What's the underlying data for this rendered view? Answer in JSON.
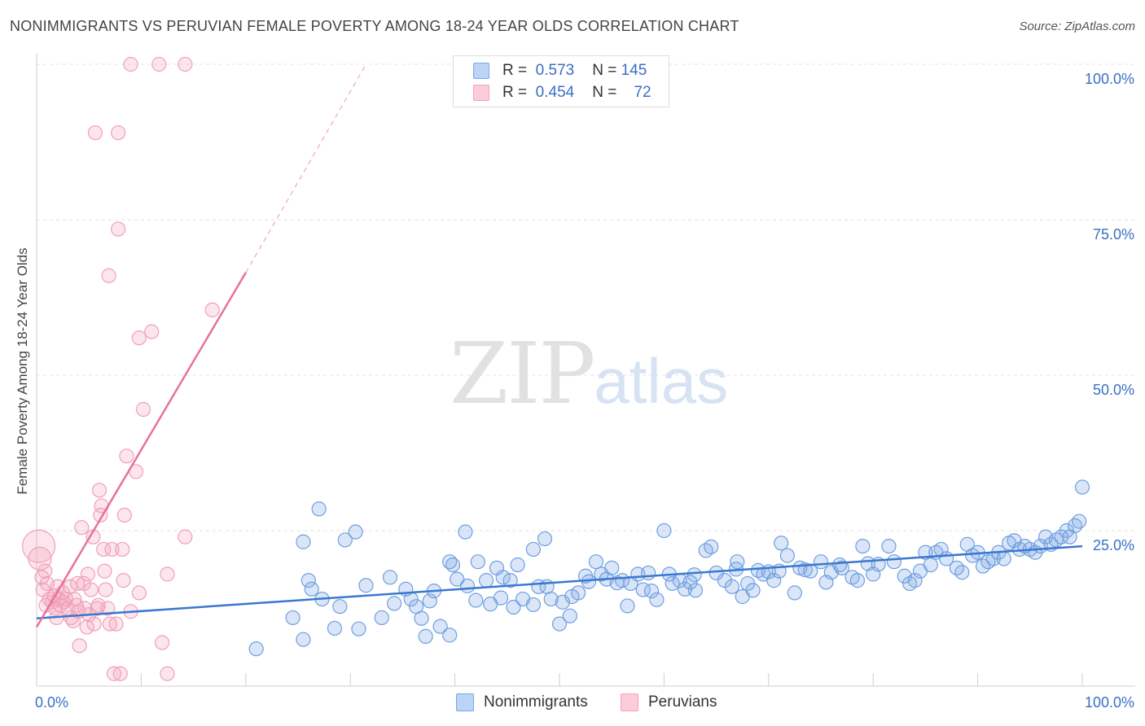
{
  "title": "NONIMMIGRANTS VS PERUVIAN FEMALE POVERTY AMONG 18-24 YEAR OLDS CORRELATION CHART",
  "source": "Source: ZipAtlas.com",
  "watermark": {
    "zip": "ZIP",
    "atlas": "atlas"
  },
  "legend": {
    "r_label": "R =",
    "n_label": "N =",
    "rows": [
      {
        "r": "0.573",
        "n": "145"
      },
      {
        "r": "0.454",
        "n": "72"
      }
    ]
  },
  "chart_data": {
    "type": "scatter",
    "title": "NONIMMIGRANTS VS PERUVIAN FEMALE POVERTY AMONG 18-24 YEAR OLDS CORRELATION CHART",
    "xlabel": "",
    "ylabel": "Female Poverty Among 18-24 Year Olds",
    "xlim": [
      0,
      100
    ],
    "ylim": [
      0,
      100
    ],
    "x_tick_labels": [
      "0.0%",
      "100.0%"
    ],
    "y_ticks": [
      25,
      50,
      75,
      100
    ],
    "y_tick_labels": [
      "25.0%",
      "50.0%",
      "75.0%",
      "100.0%"
    ],
    "grid": true,
    "legend_position": "top-center",
    "colors": {
      "nonimmigrants": "#7aa7e6",
      "peruvians": "#f4a2b9",
      "blue_line": "#3a78cf",
      "pink_line": "#e8729a",
      "tick_label": "#3a6fc4"
    },
    "series": [
      {
        "name": "Nonimmigrants",
        "color": "#7aa7e6",
        "trend": {
          "x": [
            0,
            100
          ],
          "y": [
            10.9,
            22.5
          ]
        },
        "points": [
          [
            21.0,
            6.0
          ],
          [
            25.5,
            7.5
          ],
          [
            25.5,
            23.2
          ],
          [
            26.0,
            17.0
          ],
          [
            26.3,
            15.6
          ],
          [
            27.3,
            14.0
          ],
          [
            27.0,
            28.5
          ],
          [
            28.5,
            9.3
          ],
          [
            29.0,
            12.8
          ],
          [
            29.5,
            23.5
          ],
          [
            30.5,
            24.8
          ],
          [
            30.8,
            9.2
          ],
          [
            31.5,
            16.2
          ],
          [
            33.0,
            11.0
          ],
          [
            34.2,
            13.3
          ],
          [
            35.3,
            15.6
          ],
          [
            35.8,
            14.0
          ],
          [
            36.3,
            12.8
          ],
          [
            36.8,
            10.9
          ],
          [
            37.2,
            8.0
          ],
          [
            37.6,
            13.7
          ],
          [
            38.0,
            15.3
          ],
          [
            38.6,
            9.6
          ],
          [
            39.5,
            8.2
          ],
          [
            39.5,
            20.0
          ],
          [
            39.8,
            19.5
          ],
          [
            40.2,
            17.2
          ],
          [
            41.0,
            24.8
          ],
          [
            41.2,
            16.1
          ],
          [
            42.0,
            13.8
          ],
          [
            42.2,
            20.0
          ],
          [
            43.0,
            17.0
          ],
          [
            44.0,
            19.0
          ],
          [
            44.4,
            14.2
          ],
          [
            44.6,
            17.5
          ],
          [
            45.3,
            17.0
          ],
          [
            45.6,
            12.7
          ],
          [
            46.0,
            19.5
          ],
          [
            46.5,
            14.0
          ],
          [
            47.5,
            13.1
          ],
          [
            47.5,
            22.0
          ],
          [
            48.0,
            16.0
          ],
          [
            48.6,
            23.7
          ],
          [
            48.8,
            16.0
          ],
          [
            49.2,
            14.0
          ],
          [
            50.0,
            10.0
          ],
          [
            50.3,
            13.5
          ],
          [
            51.0,
            11.3
          ],
          [
            51.2,
            14.4
          ],
          [
            51.8,
            15.0
          ],
          [
            52.5,
            17.7
          ],
          [
            53.5,
            20.0
          ],
          [
            54.0,
            18.0
          ],
          [
            54.5,
            17.2
          ],
          [
            55.0,
            19.0
          ],
          [
            55.5,
            16.6
          ],
          [
            56.0,
            17.0
          ],
          [
            56.5,
            12.9
          ],
          [
            56.8,
            16.5
          ],
          [
            57.5,
            18.0
          ],
          [
            58.0,
            15.5
          ],
          [
            58.5,
            18.2
          ],
          [
            58.8,
            15.3
          ],
          [
            60.0,
            25.0
          ],
          [
            60.5,
            18.0
          ],
          [
            60.8,
            16.5
          ],
          [
            61.5,
            17.0
          ],
          [
            62.0,
            15.6
          ],
          [
            62.5,
            16.7
          ],
          [
            63.0,
            15.4
          ],
          [
            64.0,
            21.8
          ],
          [
            64.5,
            22.4
          ],
          [
            65.0,
            18.2
          ],
          [
            65.8,
            17.0
          ],
          [
            66.5,
            16.0
          ],
          [
            67.0,
            20.0
          ],
          [
            67.5,
            14.4
          ],
          [
            68.0,
            16.5
          ],
          [
            68.5,
            15.4
          ],
          [
            69.0,
            18.6
          ],
          [
            69.5,
            18.0
          ],
          [
            70.0,
            18.4
          ],
          [
            70.5,
            17.0
          ],
          [
            71.0,
            18.5
          ],
          [
            71.2,
            23.0
          ],
          [
            71.8,
            21.0
          ],
          [
            72.5,
            15.0
          ],
          [
            73.0,
            19.0
          ],
          [
            73.5,
            18.7
          ],
          [
            74.0,
            18.5
          ],
          [
            75.0,
            20.0
          ],
          [
            75.5,
            16.7
          ],
          [
            76.0,
            18.3
          ],
          [
            76.8,
            19.5
          ],
          [
            77.0,
            19.0
          ],
          [
            78.0,
            17.5
          ],
          [
            78.5,
            17.0
          ],
          [
            79.0,
            22.5
          ],
          [
            79.5,
            19.7
          ],
          [
            80.0,
            18.0
          ],
          [
            80.5,
            19.6
          ],
          [
            81.5,
            22.5
          ],
          [
            82.0,
            20.0
          ],
          [
            83.0,
            17.7
          ],
          [
            83.5,
            16.5
          ],
          [
            84.0,
            17.0
          ],
          [
            84.5,
            18.5
          ],
          [
            85.0,
            21.5
          ],
          [
            85.5,
            19.5
          ],
          [
            86.0,
            21.5
          ],
          [
            86.5,
            22.0
          ],
          [
            87.0,
            20.5
          ],
          [
            88.0,
            19.0
          ],
          [
            88.5,
            18.3
          ],
          [
            89.0,
            22.8
          ],
          [
            89.5,
            21.0
          ],
          [
            90.0,
            21.5
          ],
          [
            90.5,
            19.3
          ],
          [
            91.0,
            20.0
          ],
          [
            91.5,
            20.5
          ],
          [
            92.0,
            21.5
          ],
          [
            92.5,
            20.5
          ],
          [
            93.0,
            23.0
          ],
          [
            93.5,
            23.4
          ],
          [
            94.0,
            22.0
          ],
          [
            94.5,
            22.5
          ],
          [
            95.0,
            22.0
          ],
          [
            95.5,
            21.5
          ],
          [
            96.0,
            22.5
          ],
          [
            96.5,
            24.0
          ],
          [
            97.0,
            22.8
          ],
          [
            97.5,
            23.5
          ],
          [
            98.0,
            24.0
          ],
          [
            98.5,
            25.0
          ],
          [
            98.8,
            24.0
          ],
          [
            99.3,
            25.8
          ],
          [
            99.7,
            26.5
          ],
          [
            100.0,
            32.0
          ],
          [
            24.5,
            11.0
          ],
          [
            33.8,
            17.5
          ],
          [
            43.4,
            13.2
          ],
          [
            52.8,
            16.8
          ],
          [
            59.3,
            13.9
          ],
          [
            62.9,
            17.9
          ],
          [
            66.9,
            18.8
          ]
        ]
      },
      {
        "name": "Peruvians",
        "color": "#f4a2b9",
        "trend": {
          "x": [
            0,
            20
          ],
          "y": [
            9.5,
            66.5
          ]
        },
        "trend_dashed": {
          "x": [
            20,
            31.5
          ],
          "y": [
            66.5,
            100
          ]
        },
        "points": [
          [
            0.2,
            22.5
          ],
          [
            0.3,
            20.5
          ],
          [
            0.5,
            17.5
          ],
          [
            0.6,
            15.5
          ],
          [
            0.8,
            18.5
          ],
          [
            1.0,
            16.5
          ],
          [
            1.2,
            14.0
          ],
          [
            1.5,
            13.5
          ],
          [
            1.7,
            14.5
          ],
          [
            1.8,
            12.5
          ],
          [
            2.0,
            16.0
          ],
          [
            2.1,
            14.0
          ],
          [
            2.3,
            13.0
          ],
          [
            2.5,
            15.0
          ],
          [
            2.6,
            13.5
          ],
          [
            2.8,
            14.0
          ],
          [
            3.0,
            12.5
          ],
          [
            3.2,
            16.0
          ],
          [
            3.3,
            11.0
          ],
          [
            3.5,
            10.5
          ],
          [
            3.6,
            14.0
          ],
          [
            3.8,
            13.0
          ],
          [
            4.0,
            12.0
          ],
          [
            4.1,
            6.5
          ],
          [
            4.3,
            25.5
          ],
          [
            4.5,
            16.5
          ],
          [
            4.6,
            12.5
          ],
          [
            4.8,
            9.5
          ],
          [
            4.9,
            18.0
          ],
          [
            5.0,
            11.5
          ],
          [
            5.2,
            15.5
          ],
          [
            5.4,
            24.0
          ],
          [
            5.5,
            10.0
          ],
          [
            5.6,
            89.0
          ],
          [
            5.8,
            12.5
          ],
          [
            6.0,
            31.5
          ],
          [
            6.1,
            27.5
          ],
          [
            6.2,
            29.0
          ],
          [
            6.4,
            22.0
          ],
          [
            6.5,
            18.5
          ],
          [
            6.6,
            15.5
          ],
          [
            6.8,
            12.5
          ],
          [
            6.9,
            66.0
          ],
          [
            7.0,
            10.0
          ],
          [
            7.2,
            22.0
          ],
          [
            7.4,
            2.0
          ],
          [
            7.6,
            10.0
          ],
          [
            7.8,
            73.5
          ],
          [
            7.8,
            89.0
          ],
          [
            8.0,
            2.0
          ],
          [
            8.2,
            22.0
          ],
          [
            8.3,
            17.0
          ],
          [
            8.4,
            27.5
          ],
          [
            8.6,
            37.0
          ],
          [
            9.0,
            12.0
          ],
          [
            9.0,
            100.0
          ],
          [
            9.5,
            34.5
          ],
          [
            9.8,
            15.0
          ],
          [
            9.8,
            56.0
          ],
          [
            10.2,
            44.5
          ],
          [
            11.0,
            57.0
          ],
          [
            11.7,
            100.0
          ],
          [
            12.0,
            7.0
          ],
          [
            12.5,
            18.0
          ],
          [
            12.5,
            2.0
          ],
          [
            14.2,
            100.0
          ],
          [
            14.2,
            24.0
          ],
          [
            16.8,
            60.5
          ],
          [
            0.9,
            13.0
          ],
          [
            1.9,
            11.0
          ],
          [
            3.9,
            16.5
          ],
          [
            5.9,
            13.0
          ]
        ]
      }
    ]
  },
  "bottom_legend": [
    "Nonimmigrants",
    "Peruvians"
  ]
}
